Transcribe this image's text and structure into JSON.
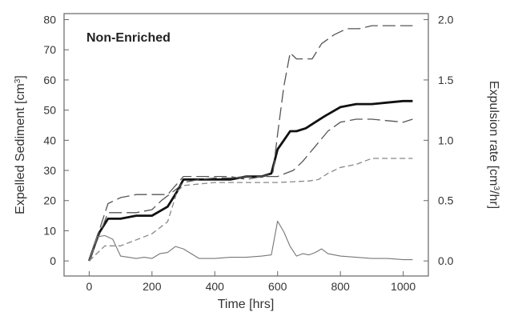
{
  "chart_data": {
    "type": "line",
    "title": "Non-Enriched",
    "xlabel": "Time [hrs]",
    "ylabel_left": "Expelled Sediment [cm",
    "ylabel_left_sup": "3",
    "ylabel_left_end": "]",
    "ylabel_right": "Expulsion rate [cm",
    "ylabel_right_sup": "3",
    "ylabel_right_end": "/hr]",
    "xlim": [
      -80,
      1080
    ],
    "ylim_left": [
      -5,
      82
    ],
    "ylim_right": [
      -0.125,
      2.05
    ],
    "x_ticks": [
      0,
      200,
      400,
      600,
      800,
      1000
    ],
    "x_tick_labels": [
      "0",
      "200",
      "400",
      "600",
      "800",
      "1000"
    ],
    "y_left_ticks": [
      0,
      10,
      20,
      30,
      40,
      50,
      60,
      70,
      80
    ],
    "y_left_tick_labels": [
      "0",
      "10",
      "20",
      "30",
      "40",
      "50",
      "60",
      "70",
      "80"
    ],
    "y_right_ticks": [
      0,
      0.5,
      1.0,
      1.5,
      2.0
    ],
    "y_right_tick_labels": [
      "0.0",
      "0.5",
      "1.0",
      "1.5",
      "2.0"
    ],
    "grid": false,
    "series": [
      {
        "style": "thick-solid",
        "axis": "left",
        "color": "#111111",
        "x": [
          0,
          30,
          60,
          100,
          150,
          200,
          250,
          280,
          300,
          350,
          400,
          450,
          500,
          550,
          580,
          600,
          620,
          640,
          660,
          690,
          720,
          750,
          800,
          850,
          900,
          950,
          1000,
          1030
        ],
        "y": [
          0,
          9,
          14,
          14,
          15,
          15,
          18,
          23,
          27,
          27,
          27,
          27,
          28,
          28,
          29,
          37,
          40,
          43,
          43,
          44,
          46,
          48,
          51,
          52,
          52,
          52.5,
          53,
          53
        ]
      },
      {
        "style": "long-dash-upper",
        "axis": "left",
        "color": "#555555",
        "x": [
          0,
          60,
          100,
          150,
          200,
          230,
          280,
          300,
          350,
          400,
          450,
          500,
          550,
          585,
          600,
          620,
          640,
          660,
          700,
          710,
          740,
          780,
          820,
          860,
          900,
          1000,
          1030
        ],
        "y": [
          0,
          16,
          16,
          16,
          17,
          20,
          24,
          26,
          27,
          27.5,
          27.5,
          28,
          28,
          29,
          42,
          58,
          69,
          67,
          67,
          67,
          72,
          75,
          77,
          77,
          78,
          78,
          78
        ]
      },
      {
        "style": "long-dash-middle",
        "axis": "left",
        "color": "#555555",
        "x": [
          0,
          60,
          100,
          150,
          200,
          250,
          300,
          350,
          400,
          450,
          500,
          550,
          600,
          650,
          680,
          720,
          760,
          800,
          850,
          900,
          1000,
          1030
        ],
        "y": [
          0,
          19,
          21,
          22,
          22,
          22,
          28,
          28,
          28,
          28,
          27,
          28,
          28,
          30,
          33,
          38,
          43,
          46,
          47,
          47,
          46,
          47
        ]
      },
      {
        "style": "short-dash-lower",
        "axis": "left",
        "color": "#888888",
        "x": [
          0,
          50,
          100,
          150,
          200,
          250,
          280,
          300,
          400,
          500,
          600,
          700,
          730,
          760,
          800,
          850,
          900,
          1000,
          1030
        ],
        "y": [
          0,
          5,
          5,
          7,
          9,
          13,
          23,
          25,
          26,
          26,
          26,
          26.5,
          27,
          29,
          31,
          32,
          34,
          34,
          34
        ]
      },
      {
        "style": "thin-solid-rate",
        "axis": "right",
        "color": "#777777",
        "x": [
          0,
          25,
          50,
          75,
          100,
          125,
          150,
          175,
          200,
          225,
          250,
          275,
          300,
          325,
          350,
          400,
          450,
          500,
          550,
          580,
          600,
          620,
          640,
          660,
          680,
          700,
          720,
          740,
          760,
          800,
          850,
          900,
          950,
          1000,
          1030
        ],
        "y": [
          0,
          0.2,
          0.21,
          0.18,
          0.04,
          0.03,
          0.02,
          0.03,
          0.02,
          0.06,
          0.07,
          0.12,
          0.1,
          0.06,
          0.02,
          0.02,
          0.03,
          0.03,
          0.04,
          0.05,
          0.33,
          0.24,
          0.12,
          0.04,
          0.06,
          0.05,
          0.07,
          0.1,
          0.06,
          0.04,
          0.03,
          0.02,
          0.02,
          0.01,
          0.01
        ]
      }
    ]
  }
}
